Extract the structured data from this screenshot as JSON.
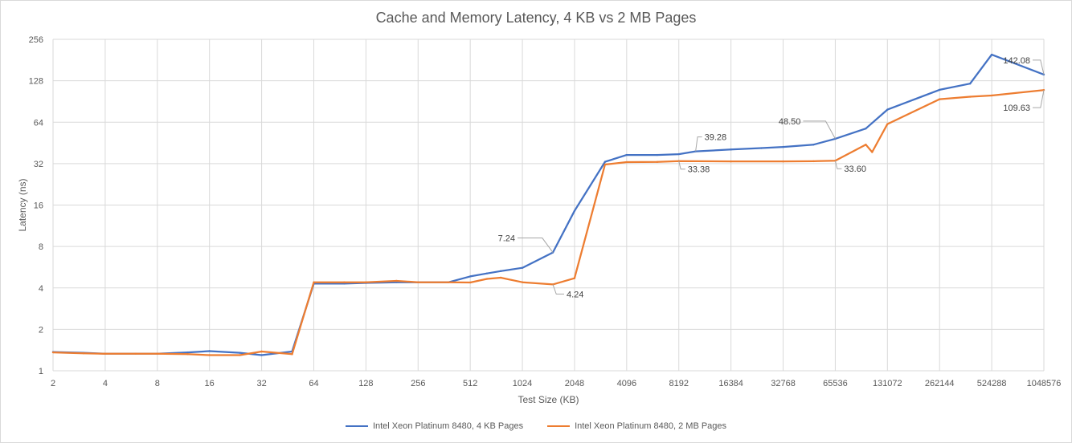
{
  "chart_data": {
    "type": "line",
    "title": "Cache and Memory Latency, 4 KB vs 2 MB Pages",
    "xlabel": "Test Size (KB)",
    "ylabel": "Latency (ns)",
    "y_scale": "log2",
    "ylim": [
      1,
      256
    ],
    "y_ticks": [
      "1",
      "2",
      "4",
      "8",
      "16",
      "32",
      "64",
      "128",
      "256"
    ],
    "x_ticks": [
      "2",
      "4",
      "8",
      "16",
      "32",
      "64",
      "128",
      "256",
      "512",
      "1024",
      "2048",
      "4096",
      "8192",
      "16384",
      "32768",
      "65536",
      "131072",
      "262144",
      "524288",
      "1048576"
    ],
    "x_scale": "log2",
    "grid": true,
    "legend_position": "bottom",
    "series": [
      {
        "name": "Intel Xeon Platinum 8480, 4 KB Pages",
        "color": "#4472c4",
        "x": [
          2,
          3,
          4,
          6,
          8,
          12,
          16,
          24,
          32,
          48,
          64,
          96,
          128,
          192,
          256,
          384,
          512,
          640,
          768,
          1024,
          1536,
          2048,
          3072,
          4096,
          6144,
          8192,
          10240,
          16384,
          24576,
          32768,
          49152,
          65536,
          98304,
          131072,
          262144,
          393216,
          524288,
          1048576
        ],
        "y": [
          1.37,
          1.35,
          1.33,
          1.33,
          1.33,
          1.36,
          1.39,
          1.35,
          1.3,
          1.38,
          4.3,
          4.3,
          4.35,
          4.4,
          4.4,
          4.4,
          4.85,
          5.1,
          5.3,
          5.6,
          7.24,
          14.5,
          33.0,
          37.0,
          37.0,
          37.5,
          39.28,
          40.5,
          41.5,
          42.3,
          44.0,
          48.5,
          57.5,
          79.0,
          110.0,
          122.0,
          198.0,
          142.08
        ]
      },
      {
        "name": "Intel Xeon Platinum 8480, 2 MB Pages",
        "color": "#ed7d31",
        "x": [
          2,
          3,
          4,
          6,
          8,
          12,
          16,
          24,
          32,
          48,
          64,
          96,
          128,
          192,
          256,
          384,
          512,
          640,
          768,
          1024,
          1536,
          2048,
          3072,
          4096,
          6144,
          8192,
          16384,
          32768,
          49152,
          65536,
          98304,
          107000,
          131072,
          262144,
          393216,
          524288,
          1048576
        ],
        "y": [
          1.36,
          1.34,
          1.33,
          1.33,
          1.33,
          1.32,
          1.3,
          1.3,
          1.38,
          1.32,
          4.4,
          4.4,
          4.4,
          4.5,
          4.4,
          4.4,
          4.38,
          4.65,
          4.75,
          4.4,
          4.24,
          4.7,
          31.5,
          32.8,
          32.9,
          33.38,
          33.2,
          33.2,
          33.3,
          33.6,
          44.0,
          38.8,
          62.0,
          94.0,
          98.0,
          100.0,
          109.63
        ]
      }
    ],
    "annotations": [
      {
        "series": 0,
        "x": 1536,
        "y": 7.24,
        "text": "7.24"
      },
      {
        "series": 1,
        "x": 1536,
        "y": 4.24,
        "text": "4.24"
      },
      {
        "series": 0,
        "x": 10240,
        "y": 39.28,
        "text": "39.28"
      },
      {
        "series": 1,
        "x": 8192,
        "y": 33.38,
        "text": "33.38"
      },
      {
        "series": 0,
        "x": 65536,
        "y": 48.5,
        "text": "48.50"
      },
      {
        "series": 1,
        "x": 65536,
        "y": 33.6,
        "text": "33.60"
      },
      {
        "series": 0,
        "x": 1048576,
        "y": 142.08,
        "text": "142.08"
      },
      {
        "series": 1,
        "x": 1048576,
        "y": 109.63,
        "text": "109.63"
      }
    ]
  }
}
